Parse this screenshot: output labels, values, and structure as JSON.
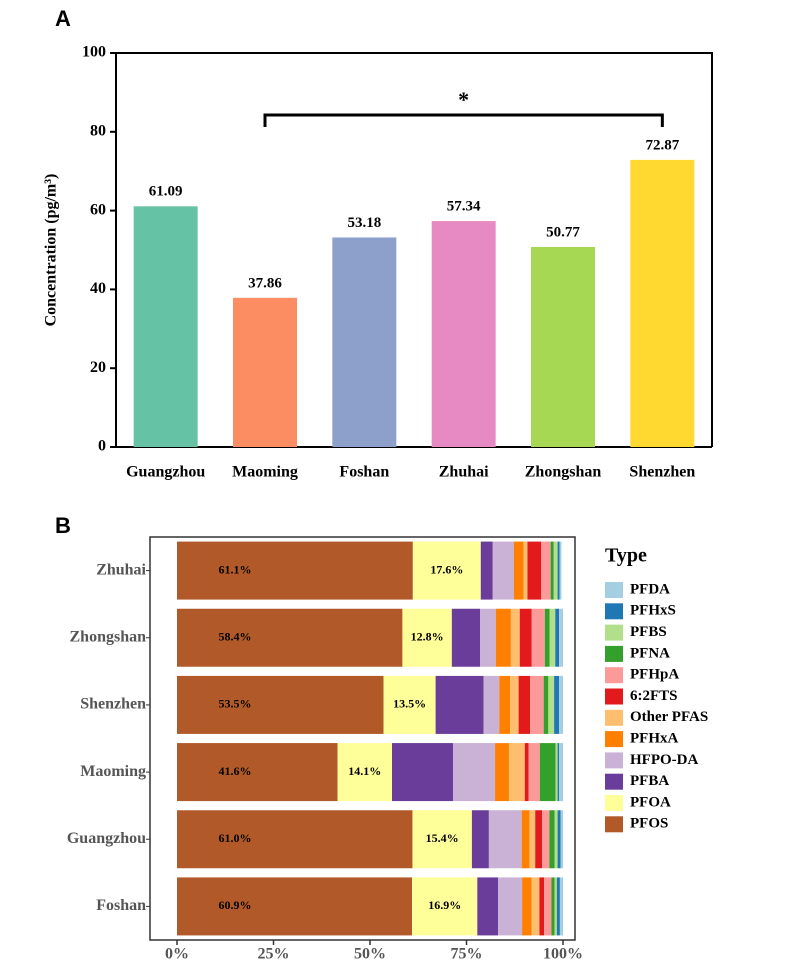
{
  "chart_data": [
    {
      "type": "bar",
      "panel": "A",
      "ylabel": "Concentration (pg/m³)",
      "categories": [
        "Guangzhou",
        "Maoming",
        "Foshan",
        "Zhuhai",
        "Zhongshan",
        "Shenzhen"
      ],
      "values": [
        61.09,
        37.86,
        53.18,
        57.34,
        50.77,
        72.87
      ],
      "colors": [
        "#66c2a5",
        "#fc8d62",
        "#8da0cb",
        "#e78ac3",
        "#a6d854",
        "#ffd92f"
      ],
      "ylim": [
        0,
        100
      ],
      "yticks": [
        0,
        20,
        40,
        60,
        80,
        100
      ],
      "significance": {
        "text": "*",
        "between": [
          "Maoming",
          "Shenzhen"
        ]
      }
    },
    {
      "type": "stacked-barh",
      "panel": "B",
      "legend_title": "Type",
      "legend": "right",
      "categories": [
        "Zhuhai",
        "Zhongshan",
        "Shenzhen",
        "Maoming",
        "Guangzhou",
        "Foshan"
      ],
      "xlim": [
        0,
        100
      ],
      "xticks": [
        {
          "value": 0,
          "label": "0%"
        },
        {
          "value": 25,
          "label": "25%"
        },
        {
          "value": 50,
          "label": "50%"
        },
        {
          "value": 75,
          "label": "75%"
        },
        {
          "value": 100,
          "label": "100%"
        }
      ],
      "series": [
        {
          "name": "PFOS",
          "color": "#b15928",
          "values": [
            61.1,
            58.4,
            53.5,
            41.6,
            61.0,
            60.9
          ],
          "value_labels": [
            "61.1%",
            "58.4%",
            "53.5%",
            "41.6%",
            "61.0%",
            "60.9%"
          ]
        },
        {
          "name": "PFOA",
          "color": "#ffff99",
          "values": [
            17.6,
            12.8,
            13.5,
            14.1,
            15.4,
            16.9
          ],
          "value_labels": [
            "17.6%",
            "12.8%",
            "13.5%",
            "14.1%",
            "15.4%",
            "16.9%"
          ]
        },
        {
          "name": "PFBA",
          "color": "#6a3d9a",
          "values": [
            3.1,
            7.3,
            12.4,
            15.8,
            4.4,
            5.4
          ]
        },
        {
          "name": "HFPO-DA",
          "color": "#cab2d6",
          "values": [
            5.5,
            4.1,
            4.1,
            10.9,
            8.5,
            6.2
          ]
        },
        {
          "name": "PFHxA",
          "color": "#ff7f00",
          "values": [
            2.5,
            3.9,
            2.8,
            3.6,
            2.0,
            2.5
          ]
        },
        {
          "name": "Other PFAS",
          "color": "#fdbf6f",
          "values": [
            1.0,
            2.3,
            2.2,
            4.1,
            1.5,
            2.0
          ]
        },
        {
          "name": "6:2FTS",
          "color": "#e31a1c",
          "values": [
            3.5,
            3.1,
            3.0,
            1.0,
            1.8,
            1.2
          ]
        },
        {
          "name": "PFHpA",
          "color": "#fb9a99",
          "values": [
            2.5,
            3.4,
            3.5,
            2.9,
            1.9,
            1.9
          ]
        },
        {
          "name": "PFNA",
          "color": "#33a02c",
          "values": [
            0.8,
            1.2,
            1.2,
            4.1,
            1.3,
            0.8
          ]
        },
        {
          "name": "PFBS",
          "color": "#b2df8a",
          "values": [
            1.0,
            1.5,
            1.5,
            0.5,
            0.8,
            0.6
          ]
        },
        {
          "name": "PFHxS",
          "color": "#1f78b4",
          "values": [
            0.5,
            1.0,
            1.3,
            0.4,
            0.8,
            0.8
          ]
        },
        {
          "name": "PFDA",
          "color": "#a6cee3",
          "values": [
            0.5,
            1.0,
            1.0,
            1.0,
            0.6,
            0.8
          ]
        }
      ]
    }
  ]
}
